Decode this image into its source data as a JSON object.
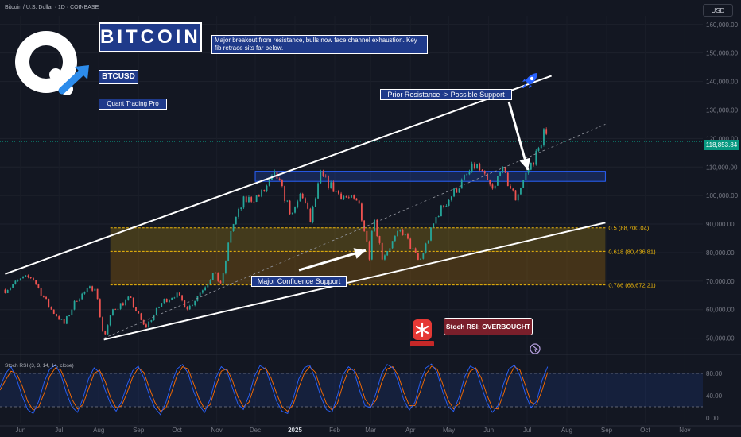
{
  "header": {
    "symbol_line": "Bitcoin / U.S. Dollar · 1D · COINBASE",
    "currency_button": "USD"
  },
  "annotations": {
    "title_box": "BITCOIN",
    "note": "Major breakout from resistance, bulls now face channel exhaustion. Key fib retrace sits far below.",
    "ticker_tag": "BTCUSD",
    "author_tag": "Quant Trading Pro",
    "prior_resistance": "Prior Resistance -> Possible Support",
    "confluence": "Major Confluence Support",
    "stoch_callout": "Stoch RSI: OVERBOUGHT"
  },
  "icons": {
    "logo": "quant-q-logo-icon",
    "rocket": "rocket-icon",
    "siren": "siren-icon",
    "cursor": "cursor-icon"
  },
  "colors": {
    "background": "#131722",
    "bullish": "#26a69a",
    "bearish": "#ef5350",
    "annotation_fill": "#1f3a8a",
    "fib_zone": "#f0b90b",
    "rsi_k": "#2962ff",
    "rsi_d": "#ff6d00",
    "last_price": "#089981"
  },
  "chart_data": {
    "type": "candlestick",
    "interval": "1D",
    "source": "COINBASE",
    "last_price": "118,853.84",
    "price_axis": {
      "ticks": [
        160000,
        150000,
        140000,
        130000,
        120000,
        110000,
        100000,
        90000,
        80000,
        70000,
        60000,
        50000
      ],
      "tick_labels": [
        "160,000.00",
        "150,000.00",
        "140,000.00",
        "130,000.00",
        "120,000.00",
        "110,000.00",
        "100,000.00",
        "90,000.00",
        "80,000.00",
        "70,000.00",
        "60,000.00",
        "50,000.00"
      ],
      "ylim": [
        46000,
        163000
      ]
    },
    "time_axis": {
      "labels": [
        "Jun",
        "Jul",
        "Aug",
        "Sep",
        "Oct",
        "Nov",
        "Dec",
        "2025",
        "Feb",
        "Mar",
        "Apr",
        "May",
        "Jun",
        "Jul",
        "Aug",
        "Sep",
        "Oct",
        "Nov"
      ],
      "bold_index": 7
    },
    "price_series": [
      [
        "2024-05-20",
        67000
      ],
      [
        "2024-06-01",
        70500
      ],
      [
        "2024-06-10",
        71500
      ],
      [
        "2024-06-24",
        60500
      ],
      [
        "2024-07-05",
        55000
      ],
      [
        "2024-07-15",
        64000
      ],
      [
        "2024-07-29",
        68500
      ],
      [
        "2024-08-05",
        50000
      ],
      [
        "2024-08-12",
        60000
      ],
      [
        "2024-08-25",
        64000
      ],
      [
        "2024-09-06",
        53500
      ],
      [
        "2024-09-20",
        63000
      ],
      [
        "2024-09-30",
        65500
      ],
      [
        "2024-10-10",
        60500
      ],
      [
        "2024-10-29",
        72500
      ],
      [
        "2024-11-05",
        69000
      ],
      [
        "2024-11-12",
        88000
      ],
      [
        "2024-11-22",
        98000
      ],
      [
        "2024-12-05",
        100000
      ],
      [
        "2024-12-17",
        107500
      ],
      [
        "2024-12-30",
        92500
      ],
      [
        "2025-01-06",
        101500
      ],
      [
        "2025-01-13",
        91000
      ],
      [
        "2025-01-21",
        107000
      ],
      [
        "2025-02-03",
        101000
      ],
      [
        "2025-02-20",
        97000
      ],
      [
        "2025-02-28",
        79000
      ],
      [
        "2025-03-03",
        94000
      ],
      [
        "2025-03-10",
        78500
      ],
      [
        "2025-03-25",
        88000
      ],
      [
        "2025-04-08",
        76500
      ],
      [
        "2025-04-22",
        93500
      ],
      [
        "2025-05-08",
        103000
      ],
      [
        "2025-05-22",
        111000
      ],
      [
        "2025-06-05",
        101000
      ],
      [
        "2025-06-10",
        110000
      ],
      [
        "2025-06-22",
        99000
      ],
      [
        "2025-06-30",
        107500
      ],
      [
        "2025-07-10",
        116000
      ],
      [
        "2025-07-14",
        122800
      ],
      [
        "2025-07-17",
        118853.84
      ]
    ],
    "channel": {
      "upper": [
        [
          "2024-05-20",
          72500
        ],
        [
          "2025-07-20",
          142000
        ]
      ],
      "lower": [
        [
          "2024-08-05",
          49500
        ],
        [
          "2025-08-31",
          90500
        ]
      ],
      "median": [
        [
          "2024-08-05",
          50000
        ],
        [
          "2025-08-31",
          125000
        ]
      ]
    },
    "resistance_zone": {
      "from": "2024-12-01",
      "to": "2025-08-31",
      "low": 105000,
      "high": 108500
    },
    "fib_zone": {
      "from": "2024-08-10",
      "to": "2025-08-31",
      "levels": [
        {
          "ratio": "0.5",
          "price": 88700.04,
          "label": "0.5 (88,700.04)"
        },
        {
          "ratio": "0.618",
          "price": 80436.81,
          "label": "0.618 (80,436.81)"
        },
        {
          "ratio": "0.786",
          "price": 68672.21,
          "label": "0.786 (68,672.21)"
        }
      ]
    },
    "stoch_rsi": {
      "title": "Stoch RSI (3, 3, 14, 14, close)",
      "axis_labels": [
        "80.00",
        "40.00",
        "0.00"
      ],
      "upper_band": 80,
      "lower_band": 20,
      "k_values": [
        55,
        80,
        92,
        70,
        40,
        15,
        8,
        30,
        65,
        88,
        95,
        78,
        45,
        20,
        10,
        35,
        70,
        90,
        82,
        50,
        25,
        12,
        30,
        60,
        85,
        93,
        72,
        40,
        18,
        6,
        28,
        62,
        88,
        96,
        80,
        48,
        22,
        10,
        34,
        72,
        92,
        85,
        55,
        25,
        15,
        40,
        75,
        94,
        88,
        60,
        30,
        12,
        8,
        35,
        70,
        90,
        95,
        70,
        38,
        15,
        10,
        40,
        78,
        92,
        84,
        50,
        22,
        18,
        45,
        80,
        96,
        90,
        65,
        32,
        14,
        28,
        66,
        90,
        97,
        82,
        48,
        20,
        12,
        38,
        74,
        93,
        88,
        58,
        28,
        10,
        22,
        60,
        88,
        95,
        76,
        42,
        18,
        30,
        68,
        92
      ],
      "d_values": [
        50,
        68,
        84,
        80,
        58,
        30,
        14,
        20,
        45,
        75,
        90,
        86,
        62,
        34,
        16,
        24,
        52,
        80,
        86,
        66,
        36,
        18,
        22,
        46,
        74,
        90,
        82,
        54,
        28,
        12,
        18,
        46,
        76,
        92,
        88,
        62,
        34,
        16,
        24,
        56,
        84,
        88,
        68,
        38,
        20,
        28,
        58,
        86,
        90,
        72,
        44,
        20,
        12,
        24,
        54,
        80,
        92,
        82,
        52,
        26,
        14,
        26,
        60,
        86,
        88,
        66,
        34,
        20,
        32,
        64,
        88,
        92,
        76,
        46,
        22,
        22,
        48,
        78,
        93,
        88,
        62,
        32,
        16,
        26,
        58,
        84,
        90,
        72,
        42,
        18,
        16,
        42,
        74,
        92,
        86,
        58,
        28,
        24,
        50,
        82
      ]
    }
  }
}
